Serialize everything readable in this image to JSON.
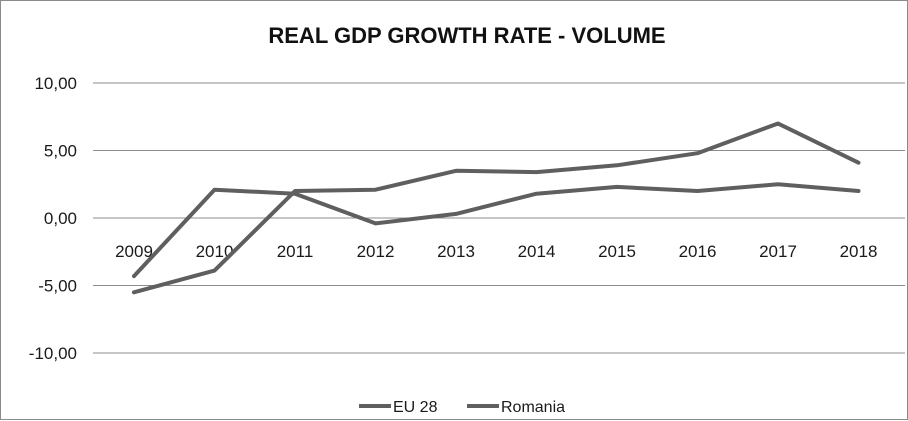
{
  "chart_data": {
    "type": "line",
    "title": "REAL GDP GROWTH RATE - VOLUME",
    "xlabel": "",
    "ylabel": "",
    "categories": [
      "2009",
      "2010",
      "2011",
      "2012",
      "2013",
      "2014",
      "2015",
      "2016",
      "2017",
      "2018"
    ],
    "y_ticks": [
      "10,00",
      "5,00",
      "0,00",
      "-5,00",
      "-10,00"
    ],
    "ylim": [
      -10,
      10
    ],
    "grid": true,
    "legend_position": "bottom",
    "series": [
      {
        "name": "EU 28",
        "color": "#5f5f5f",
        "values": [
          -4.3,
          2.1,
          1.8,
          -0.4,
          0.3,
          1.8,
          2.3,
          2.0,
          2.5,
          2.0
        ]
      },
      {
        "name": "Romania",
        "color": "#5f5f5f",
        "values": [
          -5.5,
          -3.9,
          2.0,
          2.1,
          3.5,
          3.4,
          3.9,
          4.8,
          7.0,
          4.1
        ]
      }
    ]
  }
}
